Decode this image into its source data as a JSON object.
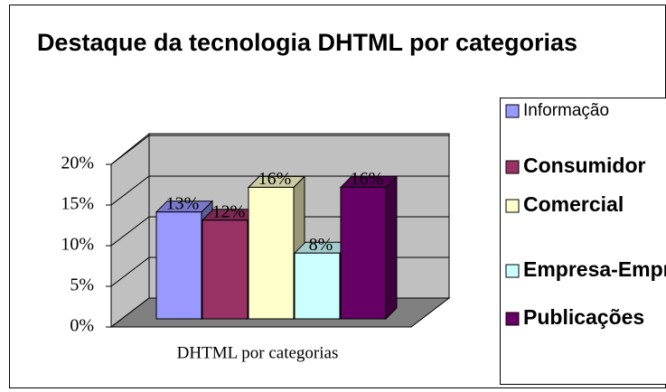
{
  "chart_data": {
    "type": "bar3d",
    "title": "Destaque da tecnologia DHTML por categorias",
    "categories": [
      "DHTML por categorias"
    ],
    "series": [
      {
        "name": "Informação",
        "color": "#9999ff",
        "values": [
          13
        ],
        "value_labels": [
          "13%"
        ]
      },
      {
        "name": "Consumidor",
        "color": "#993366",
        "values": [
          12
        ],
        "value_labels": [
          "12%"
        ]
      },
      {
        "name": "Comercial",
        "color": "#ffffcc",
        "values": [
          16
        ],
        "value_labels": [
          "16%"
        ]
      },
      {
        "name": "Empresa-Empresa",
        "color": "#ccffff",
        "values": [
          8
        ],
        "value_labels": [
          "8%"
        ]
      },
      {
        "name": "Publicações",
        "color": "#660066",
        "values": [
          16
        ],
        "value_labels": [
          "16%"
        ]
      }
    ],
    "ylim": [
      0,
      20
    ],
    "yticks": [
      {
        "value": 0,
        "label": "0%"
      },
      {
        "value": 5,
        "label": "5%"
      },
      {
        "value": 10,
        "label": "10%"
      },
      {
        "value": 15,
        "label": "15%"
      },
      {
        "value": 20,
        "label": "20%"
      }
    ],
    "grid": true,
    "legend": "right"
  }
}
